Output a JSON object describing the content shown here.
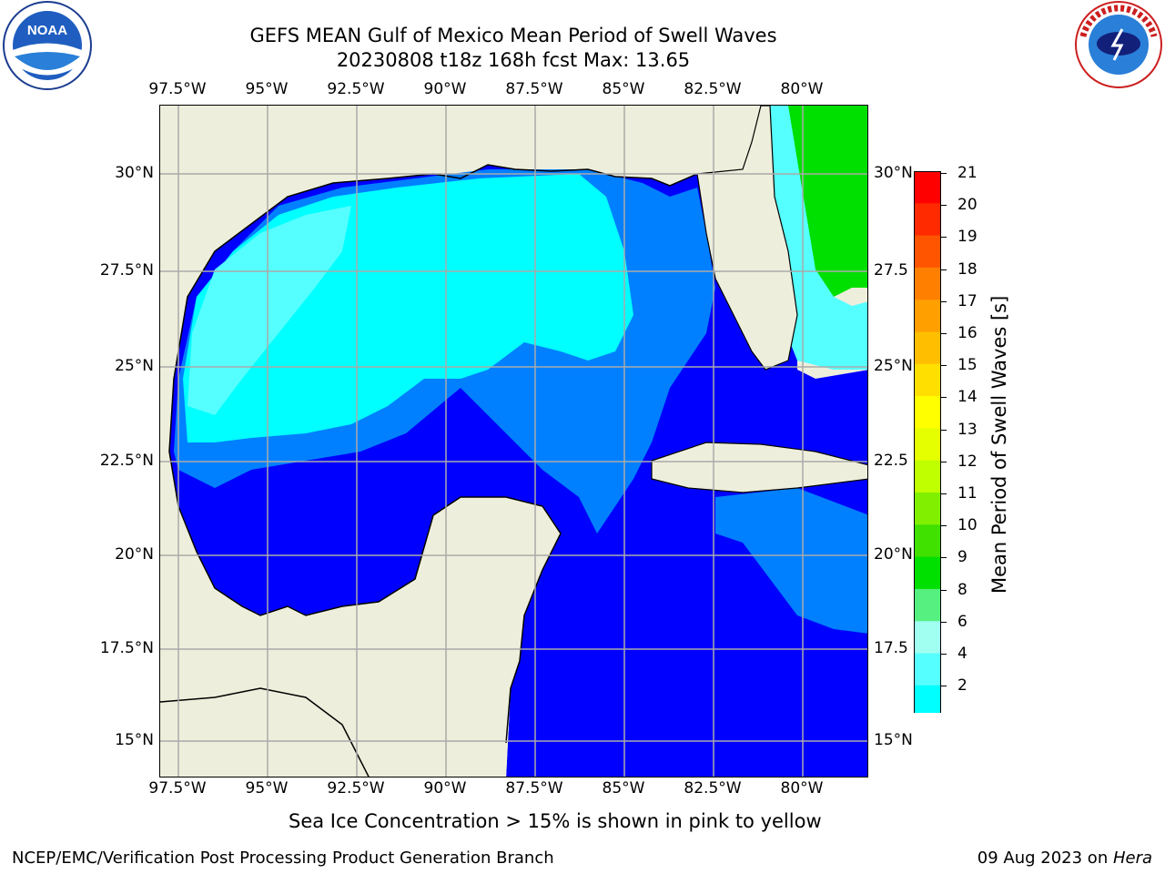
{
  "header": {
    "title_line1": "GEFS MEAN Gulf of Mexico Mean Period of Swell Waves",
    "title_line2": "20230808 t18z 168h fcst   Max: 13.65"
  },
  "logos": {
    "left": "NOAA",
    "right": "NATIONAL WEATHER SERVICE"
  },
  "axes": {
    "lon_labels": [
      "97.5°W",
      "95°W",
      "92.5°W",
      "90°W",
      "87.5°W",
      "85°W",
      "82.5°W",
      "80°W"
    ],
    "lat_labels_left": [
      "30°N",
      "27.5°N",
      "25°N",
      "22.5°N",
      "20°N",
      "17.5°N",
      "15°N"
    ],
    "lat_labels_right": [
      "30°N",
      "27.5",
      "25°N",
      "22.5",
      "20°N",
      "17.5",
      "15°N"
    ]
  },
  "colorbar": {
    "title": "Mean Period of Swell Waves [s]",
    "ticks": [
      "21",
      "20",
      "19",
      "18",
      "17",
      "16",
      "15",
      "14",
      "13",
      "12",
      "11",
      "10",
      "9",
      "8",
      "6",
      "4",
      "2"
    ],
    "colors": [
      "#ff0000",
      "#ff2a00",
      "#ff5500",
      "#ff7f00",
      "#ff9f00",
      "#ffbf00",
      "#ffdf00",
      "#ffff00",
      "#e6ff00",
      "#c0ff00",
      "#80f000",
      "#40e000",
      "#00e000",
      "#55f07f",
      "#a0fff0",
      "#55ffff",
      "#00ffff",
      "#0080ff",
      "#0000ff"
    ]
  },
  "colors": {
    "land": "#eeeedc",
    "sea_low": "#0000ff",
    "sea_mid": "#0080ff",
    "sea_high": "#00ffff",
    "sea_light": "#55ffff",
    "green": "#00e000"
  },
  "notes": {
    "ice": "Sea Ice Concentration > 15% is shown in pink to yellow"
  },
  "footer": {
    "left": "NCEP/EMC/Verification Post Processing Product Generation Branch",
    "right_prefix": "09 Aug 2023 on ",
    "right_host": "Hera"
  }
}
